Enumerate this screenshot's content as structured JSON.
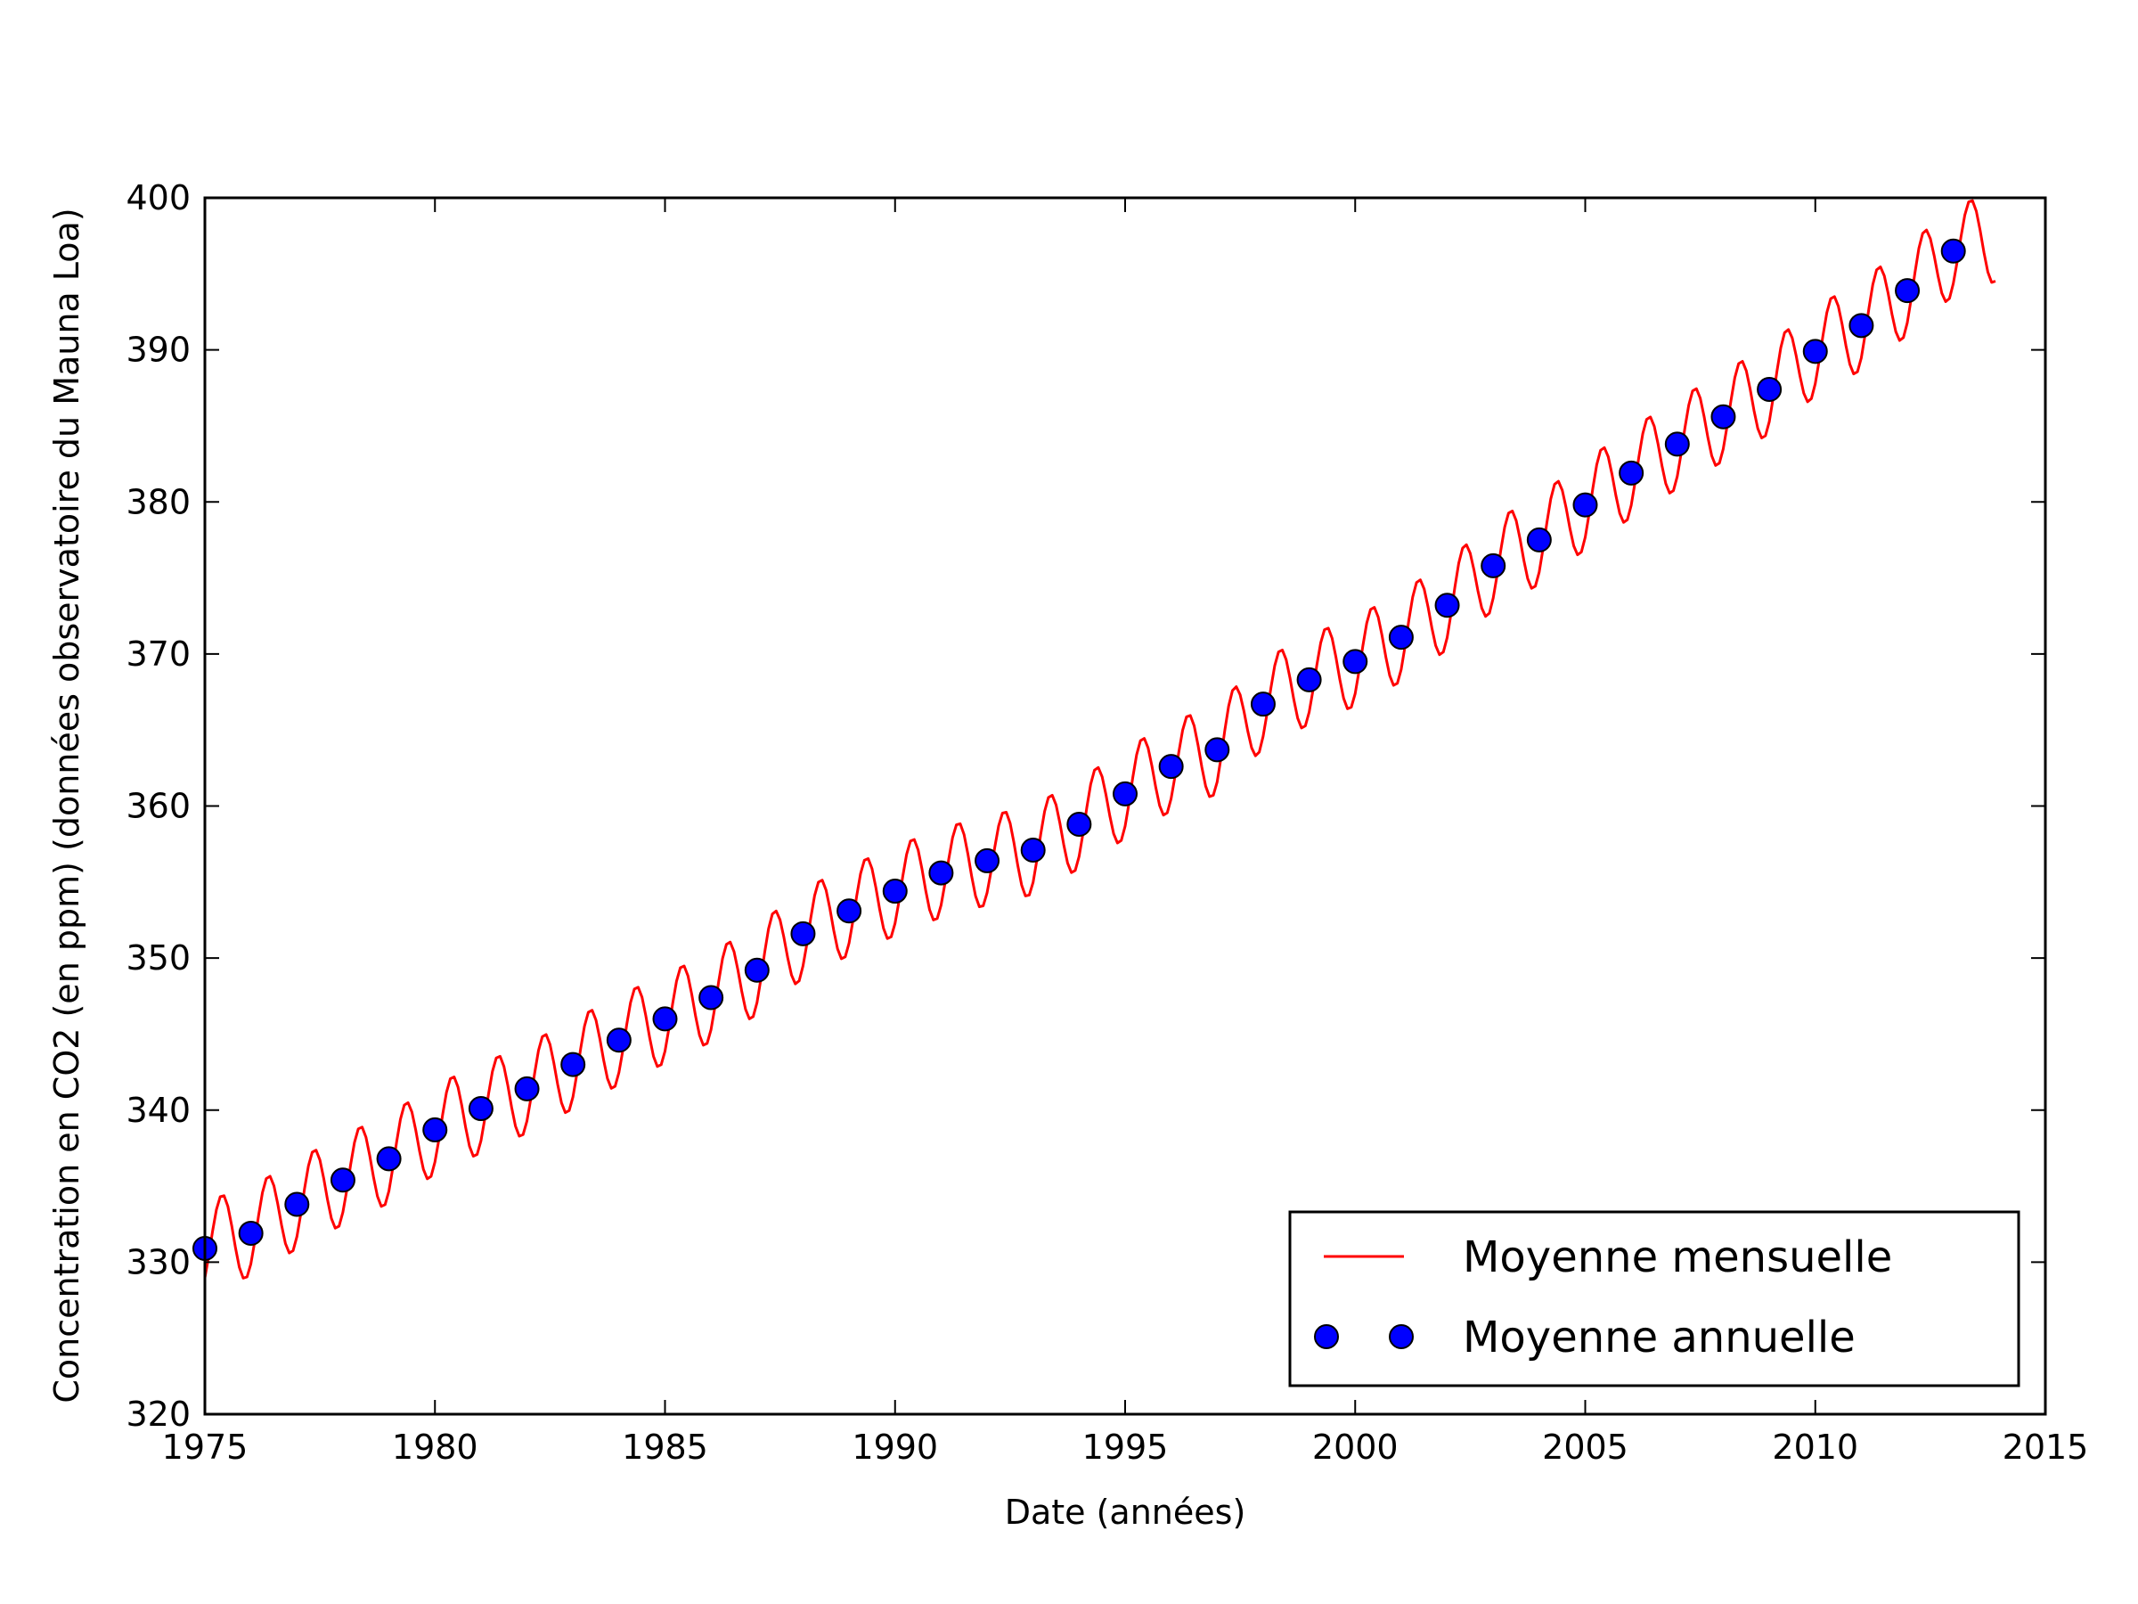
{
  "chart_data": {
    "type": "line",
    "title": "",
    "xlabel": "Date (années)",
    "ylabel": "Concentration en CO2 (en ppm) (données observatoire du Mauna Loa)",
    "xlim": [
      1975,
      2015
    ],
    "ylim": [
      320,
      400
    ],
    "xticks": [
      1975,
      1980,
      1985,
      1990,
      1995,
      2000,
      2005,
      2010,
      2015
    ],
    "yticks": [
      320,
      330,
      340,
      350,
      360,
      370,
      380,
      390,
      400
    ],
    "grid": false,
    "legend_position": "bottom-right",
    "series": [
      {
        "name": "Moyenne mensuelle",
        "kind": "line",
        "color": "#ff0000",
        "x_start": 1975.0,
        "x_step": 0.083333,
        "season_amplitude": 3.0,
        "season_peak_month": 4.5,
        "x": [
          1975,
          1976,
          1977,
          1978,
          1979,
          1980,
          1981,
          1982,
          1983,
          1984,
          1985,
          1986,
          1987,
          1988,
          1989,
          1990,
          1991,
          1992,
          1993,
          1994,
          1995,
          1996,
          1997,
          1998,
          1999,
          2000,
          2001,
          2002,
          2003,
          2004,
          2005,
          2006,
          2007,
          2008,
          2009,
          2010,
          2011,
          2012,
          2013,
          2014
        ],
        "trend": [
          331.1,
          332.0,
          333.8,
          335.4,
          336.8,
          338.7,
          340.1,
          341.4,
          343.0,
          344.6,
          346.0,
          347.4,
          349.2,
          351.6,
          353.1,
          354.4,
          355.6,
          356.4,
          357.1,
          358.8,
          360.8,
          362.6,
          363.7,
          366.7,
          368.3,
          369.5,
          371.1,
          373.2,
          375.8,
          377.5,
          379.8,
          381.9,
          383.8,
          385.6,
          387.4,
          389.9,
          391.6,
          393.9,
          396.5,
          397.5
        ]
      },
      {
        "name": "Moyenne annuelle",
        "kind": "scatter",
        "color": "#0000ff",
        "x": [
          1975,
          1976,
          1977,
          1978,
          1979,
          1980,
          1981,
          1982,
          1983,
          1984,
          1985,
          1986,
          1987,
          1988,
          1989,
          1990,
          1991,
          1992,
          1993,
          1994,
          1995,
          1996,
          1997,
          1998,
          1999,
          2000,
          2001,
          2002,
          2003,
          2004,
          2005,
          2006,
          2007,
          2008,
          2009,
          2010,
          2011,
          2012,
          2013
        ],
        "values": [
          330.9,
          331.9,
          333.8,
          335.4,
          336.8,
          338.7,
          340.1,
          341.4,
          343.0,
          344.6,
          346.0,
          347.4,
          349.2,
          351.6,
          353.1,
          354.4,
          355.6,
          356.4,
          357.1,
          358.8,
          360.8,
          362.6,
          363.7,
          366.7,
          368.3,
          369.5,
          371.1,
          373.2,
          375.8,
          377.5,
          379.8,
          381.9,
          383.8,
          385.6,
          387.4,
          389.9,
          391.6,
          393.9,
          396.5
        ]
      }
    ]
  }
}
